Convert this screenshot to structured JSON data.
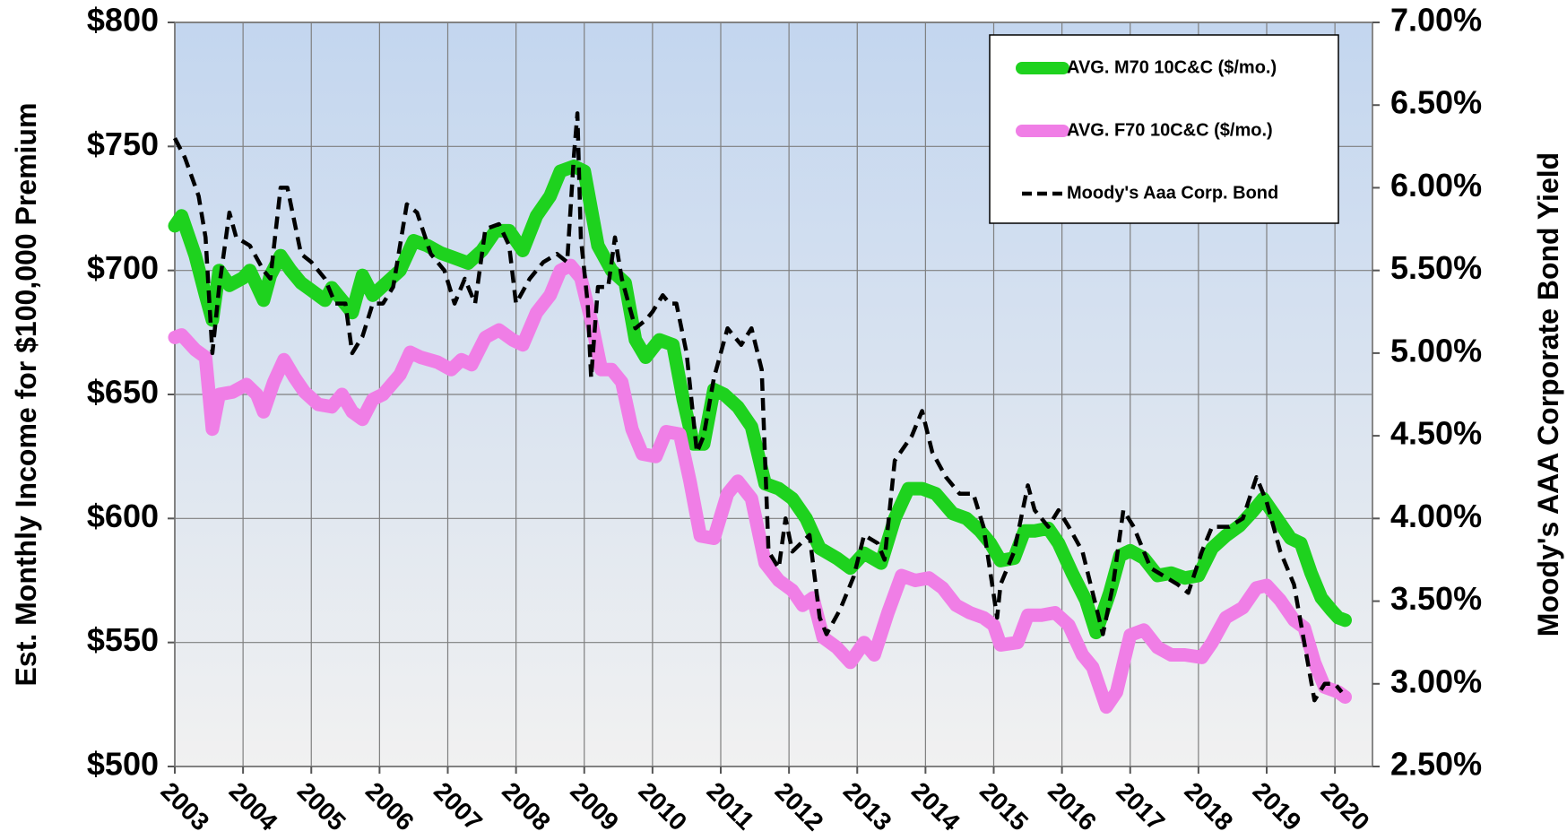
{
  "chart_data": {
    "type": "line",
    "y_label": "Est. Monthly Income for $100,000 Premium",
    "y2_label": "Moody's AAA Corporate Bond Yield",
    "xlim": [
      2003,
      2020.55
    ],
    "xticks": [
      2003,
      2004,
      2005,
      2006,
      2007,
      2008,
      2009,
      2010,
      2011,
      2012,
      2013,
      2014,
      2015,
      2016,
      2017,
      2018,
      2019,
      2020
    ],
    "ylim": [
      500,
      800
    ],
    "yticks": [
      {
        "value": 500,
        "label": "$500"
      },
      {
        "value": 550,
        "label": "$550"
      },
      {
        "value": 600,
        "label": "$600"
      },
      {
        "value": 650,
        "label": "$650"
      },
      {
        "value": 700,
        "label": "$700"
      },
      {
        "value": 750,
        "label": "$750"
      },
      {
        "value": 800,
        "label": "$800"
      }
    ],
    "y2lim": [
      2.5,
      7.0
    ],
    "y2ticks": [
      {
        "value": 2.5,
        "label": "2.50%"
      },
      {
        "value": 3.0,
        "label": "3.00%"
      },
      {
        "value": 3.5,
        "label": "3.50%"
      },
      {
        "value": 4.0,
        "label": "4.00%"
      },
      {
        "value": 4.5,
        "label": "4.50%"
      },
      {
        "value": 5.0,
        "label": "5.00%"
      },
      {
        "value": 5.5,
        "label": "5.50%"
      },
      {
        "value": 6.0,
        "label": "6.00%"
      },
      {
        "value": 6.5,
        "label": "6.50%"
      },
      {
        "value": 7.0,
        "label": "7.00%"
      }
    ],
    "grid": true,
    "legend": "upper right",
    "series": [
      {
        "name": "AVG. M70 10C&C ($/mo.)",
        "color": "#1ed21e",
        "style": "solid",
        "x": [
          2003.0,
          2003.1,
          2003.3,
          2003.45,
          2003.55,
          2003.65,
          2003.8,
          2004.0,
          2004.1,
          2004.3,
          2004.4,
          2004.55,
          2004.7,
          2004.85,
          2005.0,
          2005.2,
          2005.3,
          2005.45,
          2005.6,
          2005.75,
          2005.9,
          2006.1,
          2006.3,
          2006.5,
          2006.7,
          2006.9,
          2007.1,
          2007.3,
          2007.5,
          2007.7,
          2007.9,
          2008.1,
          2008.3,
          2008.5,
          2008.65,
          2008.85,
          2009.0,
          2009.2,
          2009.4,
          2009.6,
          2009.75,
          2009.9,
          2010.1,
          2010.3,
          2010.45,
          2010.6,
          2010.75,
          2010.9,
          2011.05,
          2011.25,
          2011.45,
          2011.65,
          2011.85,
          2012.05,
          2012.25,
          2012.45,
          2012.7,
          2012.9,
          2013.1,
          2013.35,
          2013.55,
          2013.75,
          2013.95,
          2014.15,
          2014.4,
          2014.6,
          2014.8,
          2014.95,
          2015.1,
          2015.3,
          2015.45,
          2015.6,
          2015.8,
          2015.95,
          2016.15,
          2016.35,
          2016.5,
          2016.7,
          2016.85,
          2017.0,
          2017.2,
          2017.4,
          2017.6,
          2017.8,
          2018.0,
          2018.2,
          2018.4,
          2018.6,
          2018.8,
          2018.95,
          2019.15,
          2019.35,
          2019.5,
          2019.65,
          2019.8,
          2019.95,
          2020.05,
          2020.15
        ],
        "values": [
          718,
          722,
          706,
          690,
          680,
          700,
          694,
          697,
          700,
          688,
          698,
          706,
          700,
          695,
          692,
          688,
          693,
          688,
          683,
          698,
          690,
          695,
          700,
          712,
          710,
          707,
          705,
          703,
          708,
          716,
          716,
          708,
          722,
          730,
          740,
          742,
          740,
          710,
          700,
          695,
          672,
          665,
          672,
          670,
          648,
          630,
          630,
          652,
          650,
          645,
          637,
          614,
          612,
          608,
          600,
          588,
          584,
          580,
          586,
          582,
          600,
          612,
          612,
          610,
          602,
          600,
          595,
          590,
          583,
          584,
          595,
          595,
          596,
          590,
          578,
          567,
          554,
          570,
          585,
          587,
          584,
          577,
          578,
          576,
          577,
          588,
          593,
          597,
          603,
          608,
          600,
          592,
          590,
          578,
          568,
          563,
          560,
          559
        ]
      },
      {
        "name": "AVG. F70 10C&C ($/mo.)",
        "color": "#f07ee6",
        "style": "solid",
        "x": [
          2003.0,
          2003.1,
          2003.3,
          2003.45,
          2003.55,
          2003.65,
          2003.85,
          2004.05,
          2004.2,
          2004.3,
          2004.45,
          2004.6,
          2004.75,
          2004.9,
          2005.1,
          2005.3,
          2005.45,
          2005.6,
          2005.75,
          2005.9,
          2006.05,
          2006.3,
          2006.45,
          2006.6,
          2006.85,
          2007.05,
          2007.2,
          2007.35,
          2007.55,
          2007.75,
          2007.95,
          2008.1,
          2008.3,
          2008.5,
          2008.65,
          2008.8,
          2008.95,
          2009.1,
          2009.25,
          2009.4,
          2009.55,
          2009.7,
          2009.85,
          2010.05,
          2010.2,
          2010.4,
          2010.55,
          2010.7,
          2010.9,
          2011.1,
          2011.25,
          2011.45,
          2011.65,
          2011.85,
          2012.05,
          2012.2,
          2012.35,
          2012.5,
          2012.7,
          2012.9,
          2013.1,
          2013.25,
          2013.45,
          2013.65,
          2013.85,
          2014.05,
          2014.25,
          2014.45,
          2014.65,
          2014.85,
          2015.0,
          2015.1,
          2015.35,
          2015.5,
          2015.7,
          2015.9,
          2016.1,
          2016.3,
          2016.45,
          2016.65,
          2016.8,
          2017.0,
          2017.2,
          2017.4,
          2017.6,
          2017.8,
          2018.05,
          2018.2,
          2018.4,
          2018.65,
          2018.85,
          2019.0,
          2019.2,
          2019.4,
          2019.55,
          2019.7,
          2019.85,
          2020.05,
          2020.15
        ],
        "values": [
          673,
          674,
          668,
          665,
          636,
          650,
          651,
          654,
          650,
          643,
          655,
          664,
          657,
          651,
          646,
          645,
          650,
          643,
          640,
          648,
          650,
          658,
          667,
          665,
          663,
          660,
          664,
          662,
          673,
          676,
          672,
          670,
          683,
          690,
          700,
          702,
          697,
          680,
          660,
          660,
          655,
          636,
          626,
          625,
          635,
          634,
          615,
          593,
          592,
          610,
          615,
          608,
          582,
          575,
          571,
          565,
          568,
          552,
          548,
          542,
          550,
          545,
          562,
          577,
          575,
          576,
          572,
          565,
          562,
          560,
          557,
          549,
          550,
          561,
          561,
          562,
          557,
          545,
          540,
          524,
          530,
          553,
          555,
          548,
          545,
          545,
          544,
          550,
          560,
          564,
          572,
          573,
          567,
          559,
          556,
          542,
          532,
          530,
          528
        ]
      },
      {
        "name": "Moody's Aaa Corp. Bond",
        "color": "#000000",
        "style": "dashed",
        "axis": "y2",
        "x": [
          2003.0,
          2003.15,
          2003.35,
          2003.45,
          2003.55,
          2003.65,
          2003.8,
          2003.9,
          2004.1,
          2004.3,
          2004.4,
          2004.55,
          2004.65,
          2004.85,
          2005.0,
          2005.2,
          2005.35,
          2005.5,
          2005.6,
          2005.75,
          2005.9,
          2006.05,
          2006.2,
          2006.4,
          2006.55,
          2006.75,
          2006.95,
          2007.1,
          2007.25,
          2007.4,
          2007.55,
          2007.75,
          2007.9,
          2008.0,
          2008.2,
          2008.4,
          2008.6,
          2008.75,
          2008.85,
          2008.9,
          2008.95,
          2009.05,
          2009.1,
          2009.2,
          2009.35,
          2009.45,
          2009.55,
          2009.75,
          2009.9,
          2010.0,
          2010.15,
          2010.25,
          2010.35,
          2010.5,
          2010.65,
          2010.75,
          2010.9,
          2011.1,
          2011.3,
          2011.45,
          2011.6,
          2011.7,
          2011.85,
          2011.95,
          2012.05,
          2012.3,
          2012.45,
          2012.55,
          2012.75,
          2012.95,
          2013.1,
          2013.3,
          2013.4,
          2013.55,
          2013.8,
          2013.95,
          2014.1,
          2014.3,
          2014.5,
          2014.7,
          2014.85,
          2015.05,
          2015.1,
          2015.3,
          2015.5,
          2015.6,
          2015.8,
          2015.95,
          2016.1,
          2016.3,
          2016.45,
          2016.6,
          2016.75,
          2016.9,
          2017.05,
          2017.3,
          2017.5,
          2017.7,
          2017.85,
          2018.05,
          2018.2,
          2018.45,
          2018.65,
          2018.85,
          2019.0,
          2019.2,
          2019.4,
          2019.55,
          2019.7,
          2019.85,
          2020.0,
          2020.1
        ],
        "values": [
          6.3,
          6.18,
          5.95,
          5.7,
          5.0,
          5.4,
          5.85,
          5.7,
          5.65,
          5.5,
          5.45,
          6.0,
          6.0,
          5.6,
          5.55,
          5.45,
          5.3,
          5.3,
          5.0,
          5.1,
          5.3,
          5.3,
          5.4,
          5.9,
          5.85,
          5.6,
          5.5,
          5.3,
          5.45,
          5.3,
          5.75,
          5.78,
          5.65,
          5.3,
          5.45,
          5.55,
          5.6,
          5.55,
          6.2,
          6.45,
          5.7,
          5.3,
          4.85,
          5.4,
          5.4,
          5.7,
          5.45,
          5.15,
          5.2,
          5.25,
          5.35,
          5.3,
          5.3,
          5.0,
          4.4,
          4.5,
          4.85,
          5.15,
          5.05,
          5.15,
          4.9,
          3.8,
          3.7,
          4.0,
          3.8,
          3.9,
          3.4,
          3.3,
          3.45,
          3.65,
          3.9,
          3.85,
          3.75,
          4.35,
          4.5,
          4.65,
          4.4,
          4.25,
          4.15,
          4.15,
          3.95,
          3.4,
          3.6,
          3.8,
          4.2,
          4.05,
          3.95,
          4.05,
          3.95,
          3.8,
          3.55,
          3.3,
          3.6,
          4.05,
          3.95,
          3.7,
          3.65,
          3.6,
          3.55,
          3.8,
          3.95,
          3.95,
          4.0,
          4.25,
          4.1,
          3.8,
          3.6,
          3.25,
          2.9,
          3.0,
          3.0,
          2.95
        ]
      }
    ]
  }
}
